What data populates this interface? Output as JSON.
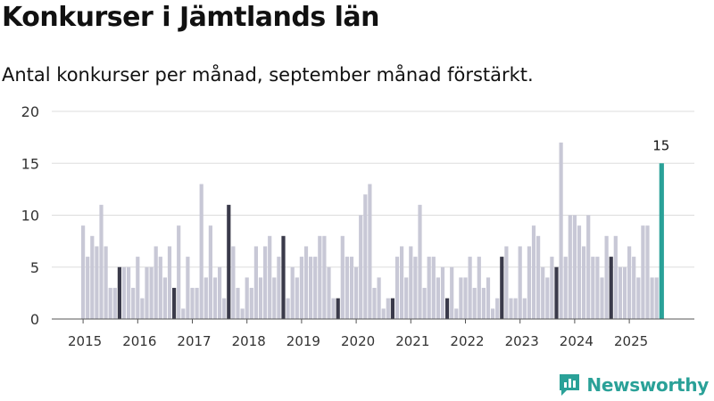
{
  "title": "Konkurser i Jämtlands län",
  "subtitle": "Antal konkurser per månad, september månad förstärkt.",
  "brand": {
    "name": "Newsworthy",
    "icon": "newsworthy-logo-icon",
    "color": "#2aa198"
  },
  "chart_data": {
    "type": "bar",
    "title": "Konkurser i Jämtlands län",
    "subtitle": "Antal konkurser per månad, september månad förstärkt.",
    "xlabel": "",
    "ylabel": "",
    "ylim": [
      0,
      20
    ],
    "yticks": [
      0,
      5,
      10,
      15,
      20
    ],
    "xtick_labels": [
      "2015",
      "2016",
      "2017",
      "2018",
      "2019",
      "2020",
      "2021",
      "2022",
      "2023",
      "2024",
      "2025"
    ],
    "start": "2015-01",
    "highlight_month": "september",
    "colors": {
      "normal": "#c8c8d6",
      "september": "#3a3a4a",
      "latest": "#2aa198",
      "grid": "#dddddd"
    },
    "latest_label": "15",
    "values": [
      9,
      6,
      8,
      7,
      11,
      7,
      3,
      3,
      5,
      5,
      5,
      3,
      6,
      2,
      5,
      5,
      7,
      6,
      4,
      7,
      3,
      9,
      1,
      6,
      3,
      3,
      13,
      4,
      9,
      4,
      5,
      2,
      11,
      7,
      3,
      1,
      4,
      3,
      7,
      4,
      7,
      8,
      4,
      6,
      8,
      2,
      5,
      4,
      6,
      7,
      6,
      6,
      8,
      8,
      5,
      2,
      2,
      8,
      6,
      6,
      5,
      10,
      12,
      13,
      3,
      4,
      1,
      2,
      2,
      6,
      7,
      4,
      7,
      6,
      11,
      3,
      6,
      6,
      4,
      5,
      2,
      5,
      1,
      4,
      4,
      6,
      3,
      6,
      3,
      4,
      1,
      2,
      6,
      7,
      2,
      2,
      7,
      2,
      7,
      9,
      8,
      5,
      4,
      6,
      5,
      17,
      6,
      10,
      10,
      9,
      7,
      10,
      6,
      6,
      4,
      8,
      6,
      8,
      5,
      5,
      7,
      6,
      4,
      9,
      9,
      4,
      4,
      15
    ]
  }
}
